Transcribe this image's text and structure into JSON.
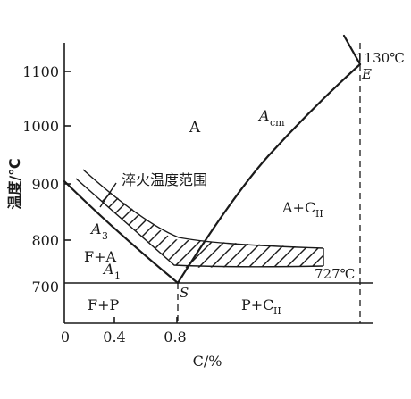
{
  "axes": {
    "y_label": "温度/℃",
    "x_label": "C/%",
    "y_ticks": [
      "700",
      "800",
      "900",
      "1000",
      "1100"
    ],
    "x_ticks": [
      "0",
      "0.4",
      "0.8"
    ]
  },
  "labels": {
    "A": "A",
    "Acm_main": "A",
    "Acm_sub": "cm",
    "A3_main": "A",
    "A3_sub": "3",
    "A1_main": "A",
    "A1_sub": "1",
    "FA": "F+A",
    "ACII_main": "A+C",
    "ACII_sub": "II",
    "FP": "F+P",
    "PCII_main": "P+C",
    "PCII_sub": "II",
    "S": "S",
    "E": "E",
    "temp_1130": "1130℃",
    "temp_727": "727℃",
    "quench_range": "淬火温度范围"
  }
}
